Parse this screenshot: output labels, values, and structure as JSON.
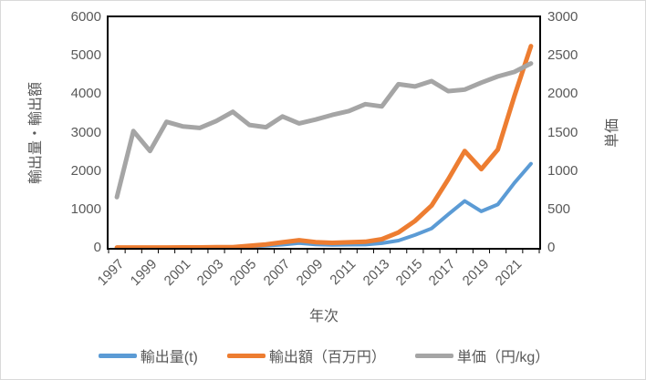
{
  "chart_data": {
    "type": "line",
    "title": "",
    "x_axis": {
      "title": "年次"
    },
    "left_axis": {
      "title": "輸出量・輸出額",
      "min": 0,
      "max": 6000,
      "ticks": [
        6000,
        5000,
        4000,
        3000,
        2000,
        1000,
        0
      ]
    },
    "right_axis": {
      "title": "単価",
      "min": 0,
      "max": 3000,
      "ticks": [
        3000,
        2500,
        2000,
        1500,
        1000,
        500,
        0
      ]
    },
    "x": [
      1997,
      1998,
      1999,
      2000,
      2001,
      2002,
      2003,
      2004,
      2005,
      2006,
      2007,
      2008,
      2009,
      2010,
      2011,
      2012,
      2013,
      2014,
      2015,
      2016,
      2017,
      2018,
      2019,
      2020,
      2021,
      2022
    ],
    "x_tick_labels": [
      "1997",
      "1999",
      "2001",
      "2003",
      "2005",
      "2007",
      "2009",
      "2011",
      "2013",
      "2015",
      "2017",
      "2019",
      "2021"
    ],
    "grid": false,
    "legend_position": "bottom",
    "series": [
      {
        "name": "輸出量(t)",
        "axis": "left",
        "color": "#5B9BD5",
        "values": [
          15,
          7,
          8,
          6,
          8,
          8,
          10,
          11,
          34,
          58,
          84,
          123,
          89,
          76,
          82,
          86,
          122,
          190,
          335,
          505,
          870,
          1220,
          950,
          1130,
          1690,
          2190
        ]
      },
      {
        "name": "輸出額（百万円）",
        "axis": "left",
        "color": "#ED7D31",
        "values": [
          10,
          10,
          10,
          10,
          12,
          13,
          16,
          20,
          55,
          90,
          145,
          200,
          150,
          130,
          145,
          160,
          225,
          400,
          700,
          1100,
          1780,
          2520,
          2050,
          2560,
          3950,
          5250
        ]
      },
      {
        "name": "単価（円/kg）",
        "axis": "right",
        "color": "#A5A5A5",
        "values": [
          660,
          1520,
          1260,
          1640,
          1580,
          1560,
          1650,
          1770,
          1600,
          1570,
          1710,
          1620,
          1670,
          1730,
          1780,
          1870,
          1840,
          2130,
          2100,
          2170,
          2040,
          2060,
          2150,
          2230,
          2290,
          2400
        ]
      }
    ]
  },
  "colors": {
    "axis_line": "#000000",
    "tick_text": "#595959",
    "canvas_border": "#d9d9d9"
  }
}
